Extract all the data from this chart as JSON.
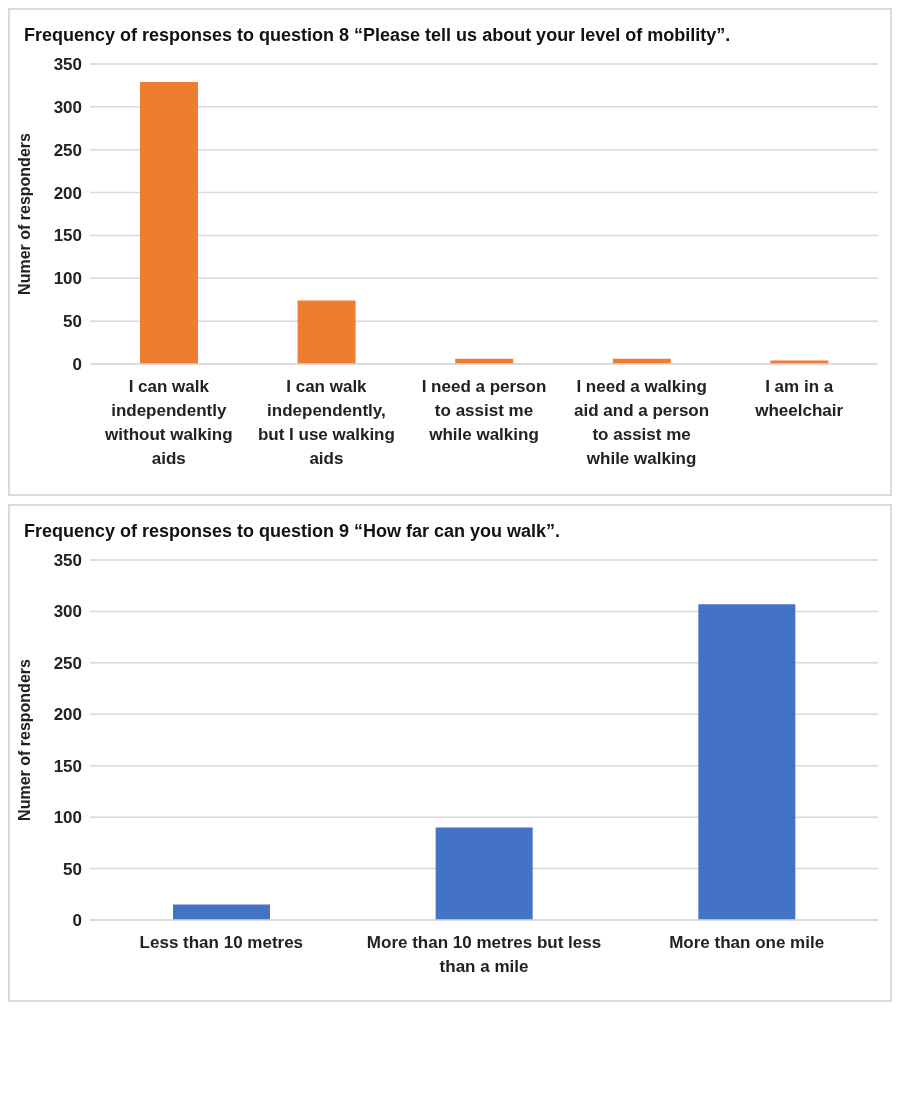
{
  "chart_data": [
    {
      "type": "bar",
      "title": "Frequency of responses to question 8 “Please tell us about your level of mobility”.",
      "ylabel": "Numer of responders",
      "categories": [
        "I can walk independently without walking aids",
        "I can walk independently, but I use walking aids",
        "I need a person to assist me while walking",
        "I need a walking aid and a person to assist me while walking",
        "I am in a wheelchair"
      ],
      "values": [
        329,
        74,
        6,
        6,
        4
      ],
      "color": "#ed7d31",
      "ylim": [
        0,
        350
      ],
      "yticks": [
        0,
        50,
        100,
        150,
        200,
        250,
        300,
        350
      ],
      "grid": "y"
    },
    {
      "type": "bar",
      "title": "Frequency of responses to question 9 “How far can you walk”.",
      "ylabel": "Numer of responders",
      "categories": [
        "Less than 10 metres",
        "More than 10 metres but less than a mile",
        "More than one mile"
      ],
      "values": [
        15,
        90,
        307
      ],
      "color": "#4472c4",
      "ylim": [
        0,
        350
      ],
      "yticks": [
        0,
        50,
        100,
        150,
        200,
        250,
        300,
        350
      ],
      "grid": "y"
    }
  ]
}
